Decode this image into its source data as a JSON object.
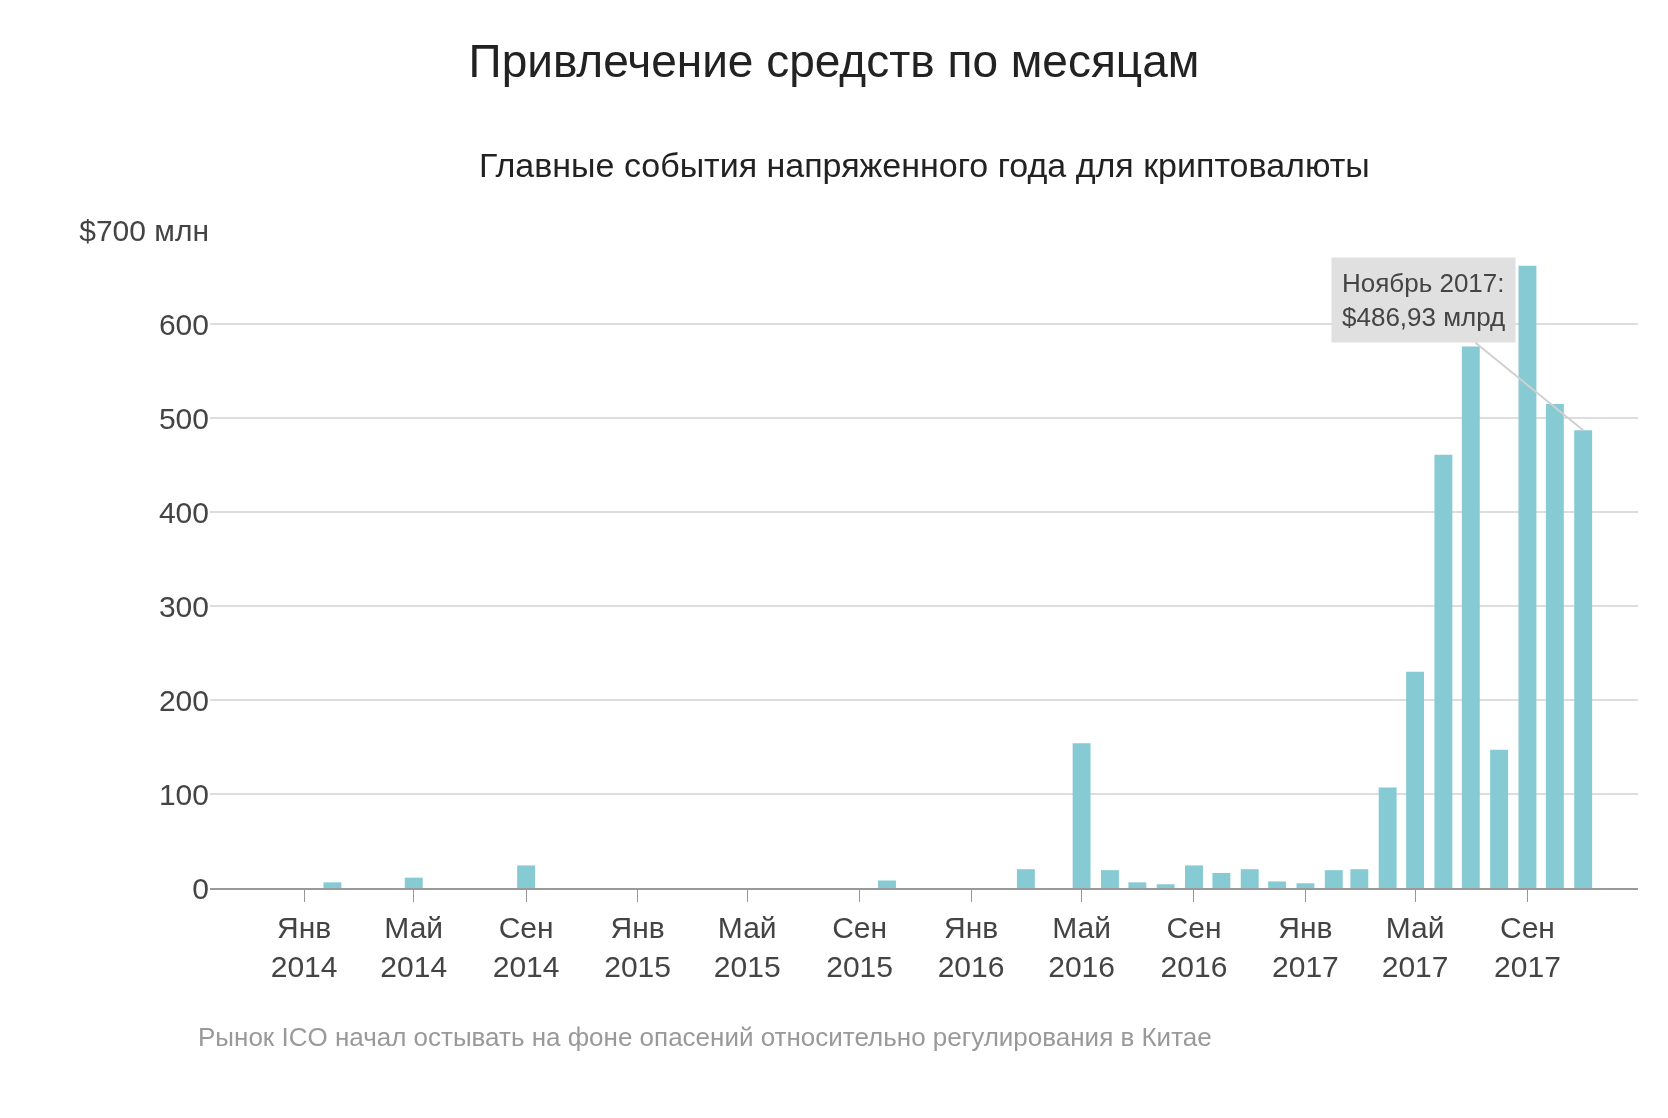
{
  "chart_data": {
    "type": "bar",
    "title": "Привлечение средств по месяцам",
    "subtitle": "Главные события напряженного года для криптовалюты",
    "x": [
      "2014-02",
      "2014-05",
      "2014-09",
      "2015-10",
      "2016-03",
      "2016-05",
      "2016-06",
      "2016-07",
      "2016-08",
      "2016-09",
      "2016-10",
      "2016-11",
      "2016-12",
      "2017-01",
      "2017-02",
      "2017-03",
      "2017-04",
      "2017-05",
      "2017-06",
      "2017-07",
      "2017-08",
      "2017-09",
      "2017-10",
      "2017-11"
    ],
    "values": [
      6,
      11,
      24,
      8,
      20,
      154,
      19,
      6,
      4,
      24,
      16,
      20,
      7,
      5,
      19,
      20,
      107,
      230,
      461,
      576,
      147,
      662,
      515,
      486.93
    ],
    "color": "#86cad3",
    "xlim": [
      "2013-09-20",
      "2017-12-31"
    ],
    "xticks": [
      {
        "value": "2014-01",
        "label": "Янв\n2014"
      },
      {
        "value": "2014-05",
        "label": "Май\n2014"
      },
      {
        "value": "2014-09",
        "label": "Сен\n2014"
      },
      {
        "value": "2015-01",
        "label": "Янв\n2015"
      },
      {
        "value": "2015-05",
        "label": "Май\n2015"
      },
      {
        "value": "2015-09",
        "label": "Сен\n2015"
      },
      {
        "value": "2016-01",
        "label": "Янв\n2016"
      },
      {
        "value": "2016-05",
        "label": "Май\n2016"
      },
      {
        "value": "2016-09",
        "label": "Сен\n2016"
      },
      {
        "value": "2017-01",
        "label": "Янв\n2017"
      },
      {
        "value": "2017-05",
        "label": "Май\n2017"
      },
      {
        "value": "2017-09",
        "label": "Сен\n2017"
      }
    ],
    "ylim": [
      0,
      700
    ],
    "yticks": [
      0,
      100,
      200,
      300,
      400,
      500,
      600,
      {
        "value": 700,
        "label": "$700 млн"
      }
    ],
    "grid": "y",
    "legend": false,
    "annotations": [
      {
        "text": "Ноябрь 2017:\n$486,93 млрд",
        "x": "2017-11",
        "y": 486.93
      },
      "Рынок ICO начал остывать на фоне опасений относительно регулирования в Китае"
    ]
  }
}
